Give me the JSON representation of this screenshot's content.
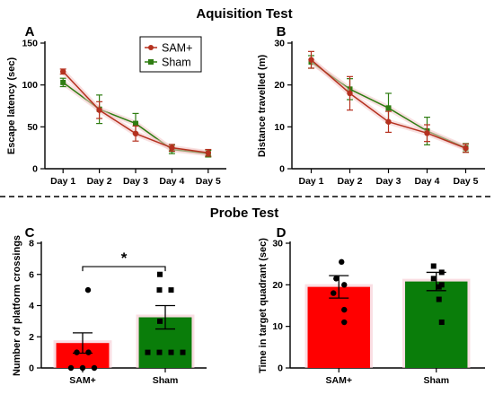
{
  "sections": {
    "top_title": "Aquisition Test",
    "bottom_title": "Probe Test"
  },
  "chart_data": [
    {
      "panel": "A",
      "type": "line",
      "xlabel": "",
      "ylabel": "Escape latency (sec)",
      "categories": [
        "Day 1",
        "Day 2",
        "Day 3",
        "Day 4",
        "Day 5"
      ],
      "ylim": [
        0,
        150
      ],
      "yticks": [
        0,
        50,
        100,
        150
      ],
      "legend_position": "top-center",
      "series": [
        {
          "name": "SAM+",
          "color": "#b5311f",
          "marker": "circle",
          "values": [
            116,
            70,
            42,
            25,
            19
          ],
          "errors": [
            3,
            10,
            9,
            4,
            4
          ]
        },
        {
          "name": "Sham",
          "color": "#2f7d12",
          "marker": "square",
          "values": [
            103,
            71,
            54,
            23,
            18
          ],
          "errors": [
            5,
            17,
            12,
            5,
            4
          ]
        }
      ]
    },
    {
      "panel": "B",
      "type": "line",
      "xlabel": "",
      "ylabel": "Distance travelled (m)",
      "categories": [
        "Day 1",
        "Day 2",
        "Day 3",
        "Day 4",
        "Day 5"
      ],
      "ylim": [
        0,
        30
      ],
      "yticks": [
        0,
        10,
        20,
        30
      ],
      "series": [
        {
          "name": "SAM+",
          "color": "#b5311f",
          "marker": "circle",
          "values": [
            26,
            18,
            11.2,
            8.5,
            4.9
          ],
          "errors": [
            2,
            4,
            2.5,
            2,
            1
          ]
        },
        {
          "name": "Sham",
          "color": "#2f7d12",
          "marker": "square",
          "values": [
            25.5,
            19,
            14.5,
            9,
            5
          ],
          "errors": [
            1.5,
            2.5,
            3.5,
            3.3,
            1
          ]
        }
      ]
    },
    {
      "panel": "C",
      "type": "bar",
      "xlabel": "",
      "ylabel": "Number of platform crossings",
      "categories": [
        "SAM+",
        "Sham"
      ],
      "values": [
        1.6,
        3.25
      ],
      "errors": [
        0.65,
        0.75
      ],
      "colors": [
        "#ff0000",
        "#0a7d0a"
      ],
      "ylim": [
        0,
        8
      ],
      "yticks": [
        0,
        2,
        4,
        6,
        8
      ],
      "points": [
        [
          0,
          0,
          0,
          1,
          1,
          5
        ],
        [
          1,
          1,
          1,
          1,
          3,
          5,
          5,
          6
        ]
      ],
      "significance": "*"
    },
    {
      "panel": "D",
      "type": "bar",
      "xlabel": "",
      "ylabel": "Time in target quadrant (sec)",
      "categories": [
        "SAM+",
        "Sham"
      ],
      "values": [
        19.5,
        20.8
      ],
      "errors": [
        2.7,
        2.2
      ],
      "colors": [
        "#ff0000",
        "#0a7d0a"
      ],
      "ylim": [
        0,
        30
      ],
      "yticks": [
        0,
        10,
        20,
        30
      ],
      "points": [
        [
          25.5,
          21.5,
          20,
          18,
          14,
          11
        ],
        [
          24.5,
          23,
          21.5,
          20,
          19.5,
          16.5,
          11
        ]
      ]
    }
  ]
}
